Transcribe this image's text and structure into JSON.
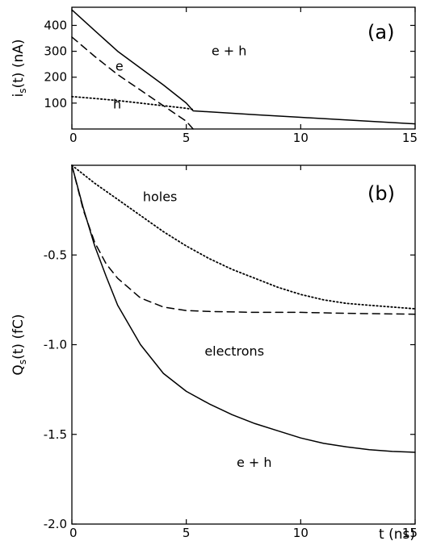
{
  "chart_data": [
    {
      "panel": "(a)",
      "type": "line",
      "xlabel": "",
      "ylabel": "i_s(t) (nA)",
      "xlim": [
        0,
        15
      ],
      "ylim": [
        0,
        470
      ],
      "xticks": [
        "0",
        "5",
        "10",
        "15"
      ],
      "yticks": [
        "100",
        "200",
        "300",
        "400"
      ],
      "grid": false,
      "legend": "none",
      "series": [
        {
          "name": "e + h",
          "style": "solid",
          "color": "#000000",
          "x": [
            0,
            1,
            2,
            3,
            4,
            5,
            5.3,
            8,
            10,
            12,
            15
          ],
          "y": [
            460,
            380,
            300,
            235,
            170,
            100,
            70,
            55,
            45,
            35,
            20
          ]
        },
        {
          "name": "e",
          "style": "dashed",
          "color": "#000000",
          "x": [
            0,
            1,
            2,
            3,
            4,
            5,
            5.3
          ],
          "y": [
            355,
            280,
            210,
            150,
            90,
            30,
            0
          ]
        },
        {
          "name": "h",
          "style": "dotted",
          "color": "#000000",
          "x": [
            0,
            1,
            2,
            3,
            4,
            5,
            5.3
          ],
          "y": [
            125,
            118,
            110,
            100,
            90,
            80,
            75
          ]
        }
      ],
      "annotations": [
        {
          "text": "e + h",
          "x": 6.1,
          "y": 285
        },
        {
          "text": "e",
          "x": 1.9,
          "y": 225
        },
        {
          "text": "h",
          "x": 1.8,
          "y": 80
        }
      ]
    },
    {
      "panel": "(b)",
      "type": "line",
      "xlabel": "t (ns)",
      "ylabel": "Q_s(t) (fC)",
      "xlim": [
        0,
        15
      ],
      "ylim": [
        -2.0,
        0
      ],
      "xticks": [
        "0",
        "5",
        "10",
        "15"
      ],
      "yticks": [
        "-0.5",
        "-1.0",
        "-1.5",
        "-2.0"
      ],
      "grid": false,
      "legend": "none",
      "series": [
        {
          "name": "holes",
          "style": "dotted",
          "color": "#000000",
          "x": [
            0,
            1,
            2,
            3,
            4,
            5,
            6,
            7,
            8,
            9,
            10,
            11,
            12,
            13,
            14,
            15
          ],
          "y": [
            0,
            -0.1,
            -0.19,
            -0.28,
            -0.37,
            -0.45,
            -0.52,
            -0.58,
            -0.63,
            -0.68,
            -0.72,
            -0.75,
            -0.77,
            -0.78,
            -0.79,
            -0.8
          ]
        },
        {
          "name": "electrons",
          "style": "dashed",
          "color": "#000000",
          "x": [
            0,
            0.5,
            1,
            1.5,
            2,
            3,
            4,
            5,
            6,
            8,
            10,
            12,
            15
          ],
          "y": [
            0,
            -0.25,
            -0.43,
            -0.55,
            -0.63,
            -0.74,
            -0.79,
            -0.81,
            -0.815,
            -0.82,
            -0.82,
            -0.825,
            -0.83
          ]
        },
        {
          "name": "e + h",
          "style": "solid",
          "color": "#000000",
          "x": [
            0,
            0.5,
            1,
            1.5,
            2,
            3,
            4,
            5,
            6,
            7,
            8,
            9,
            10,
            11,
            12,
            13,
            14,
            15
          ],
          "y": [
            0,
            -0.24,
            -0.45,
            -0.62,
            -0.78,
            -1.0,
            -1.16,
            -1.26,
            -1.33,
            -1.39,
            -1.44,
            -1.48,
            -1.52,
            -1.55,
            -1.57,
            -1.585,
            -1.595,
            -1.6
          ]
        }
      ],
      "annotations": [
        {
          "text": "holes",
          "x": 3.1,
          "y": -0.2
        },
        {
          "text": "electrons",
          "x": 5.8,
          "y": -1.06
        },
        {
          "text": "e + h",
          "x": 7.2,
          "y": -1.68
        }
      ]
    }
  ]
}
